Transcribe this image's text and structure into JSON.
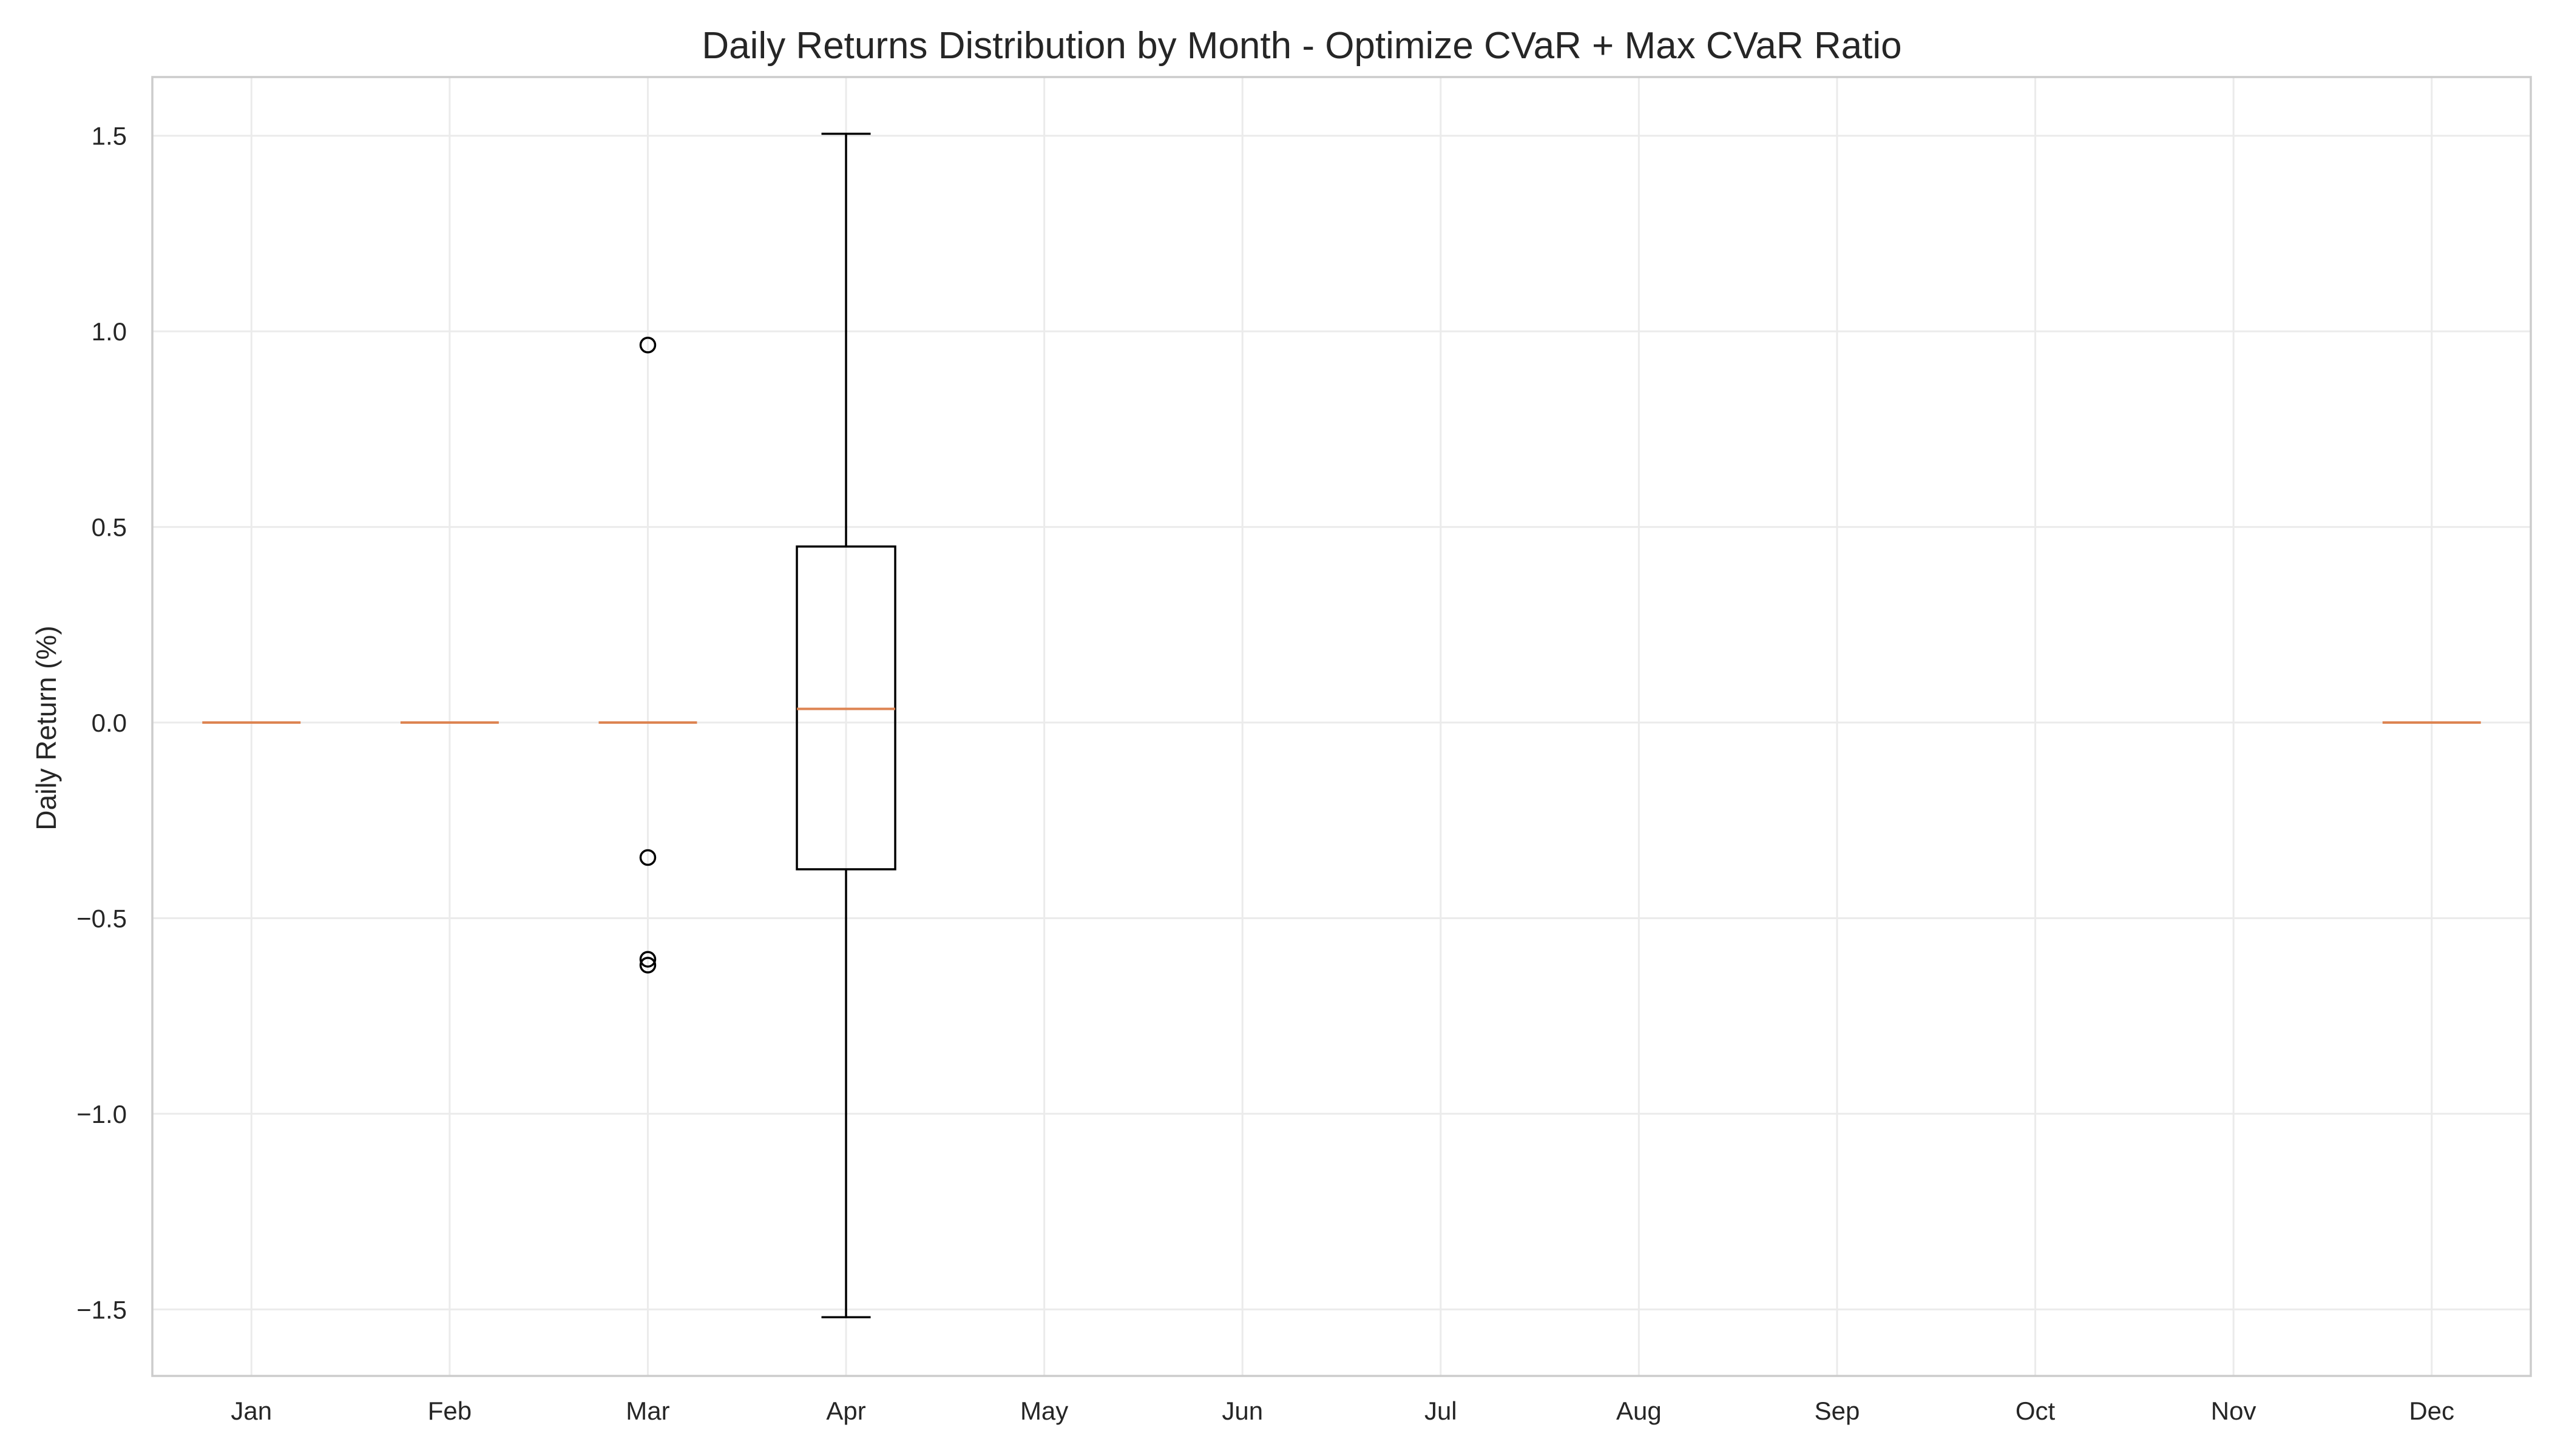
{
  "chart_data": {
    "type": "boxplot",
    "title": "Daily Returns Distribution by Month - Optimize CVaR + Max CVaR Ratio",
    "xlabel": "",
    "ylabel": "Daily Return (%)",
    "ylim": [
      -1.67,
      1.65
    ],
    "yticks": [
      -1.5,
      -1.0,
      -0.5,
      0.0,
      0.5,
      1.0,
      1.5
    ],
    "ytick_labels": [
      "−1.5",
      "−1.0",
      "−0.5",
      "0.0",
      "0.5",
      "1.0",
      "1.5"
    ],
    "grid": true,
    "categories": [
      "Jan",
      "Feb",
      "Mar",
      "Apr",
      "May",
      "Jun",
      "Jul",
      "Aug",
      "Sep",
      "Oct",
      "Nov",
      "Dec"
    ],
    "boxes": [
      {
        "label": "Jan",
        "q1": 0.0,
        "median": 0.0,
        "q3": 0.0,
        "whisker_low": 0.0,
        "whisker_high": 0.0,
        "fliers": []
      },
      {
        "label": "Feb",
        "q1": 0.0,
        "median": 0.0,
        "q3": 0.0,
        "whisker_low": 0.0,
        "whisker_high": 0.0,
        "fliers": []
      },
      {
        "label": "Mar",
        "q1": 0.0,
        "median": 0.0,
        "q3": 0.0,
        "whisker_low": 0.0,
        "whisker_high": 0.0,
        "fliers": [
          0.965,
          -0.345,
          -0.605,
          -0.62
        ]
      },
      {
        "label": "Apr",
        "q1": -0.375,
        "median": 0.035,
        "q3": 0.45,
        "whisker_low": -1.52,
        "whisker_high": 1.505,
        "fliers": []
      },
      {
        "label": "May",
        "empty": true
      },
      {
        "label": "Jun",
        "empty": true
      },
      {
        "label": "Jul",
        "empty": true
      },
      {
        "label": "Aug",
        "empty": true
      },
      {
        "label": "Sep",
        "empty": true
      },
      {
        "label": "Oct",
        "empty": true
      },
      {
        "label": "Nov",
        "empty": true
      },
      {
        "label": "Dec",
        "q1": 0.0,
        "median": 0.0,
        "q3": 0.0,
        "whisker_low": 0.0,
        "whisker_high": 0.0,
        "fliers": []
      }
    ],
    "colors": {
      "box": "#000000",
      "median": "#dd8452",
      "grid": "#ebebeb",
      "frame": "#cccccc",
      "text": "#262626"
    }
  }
}
